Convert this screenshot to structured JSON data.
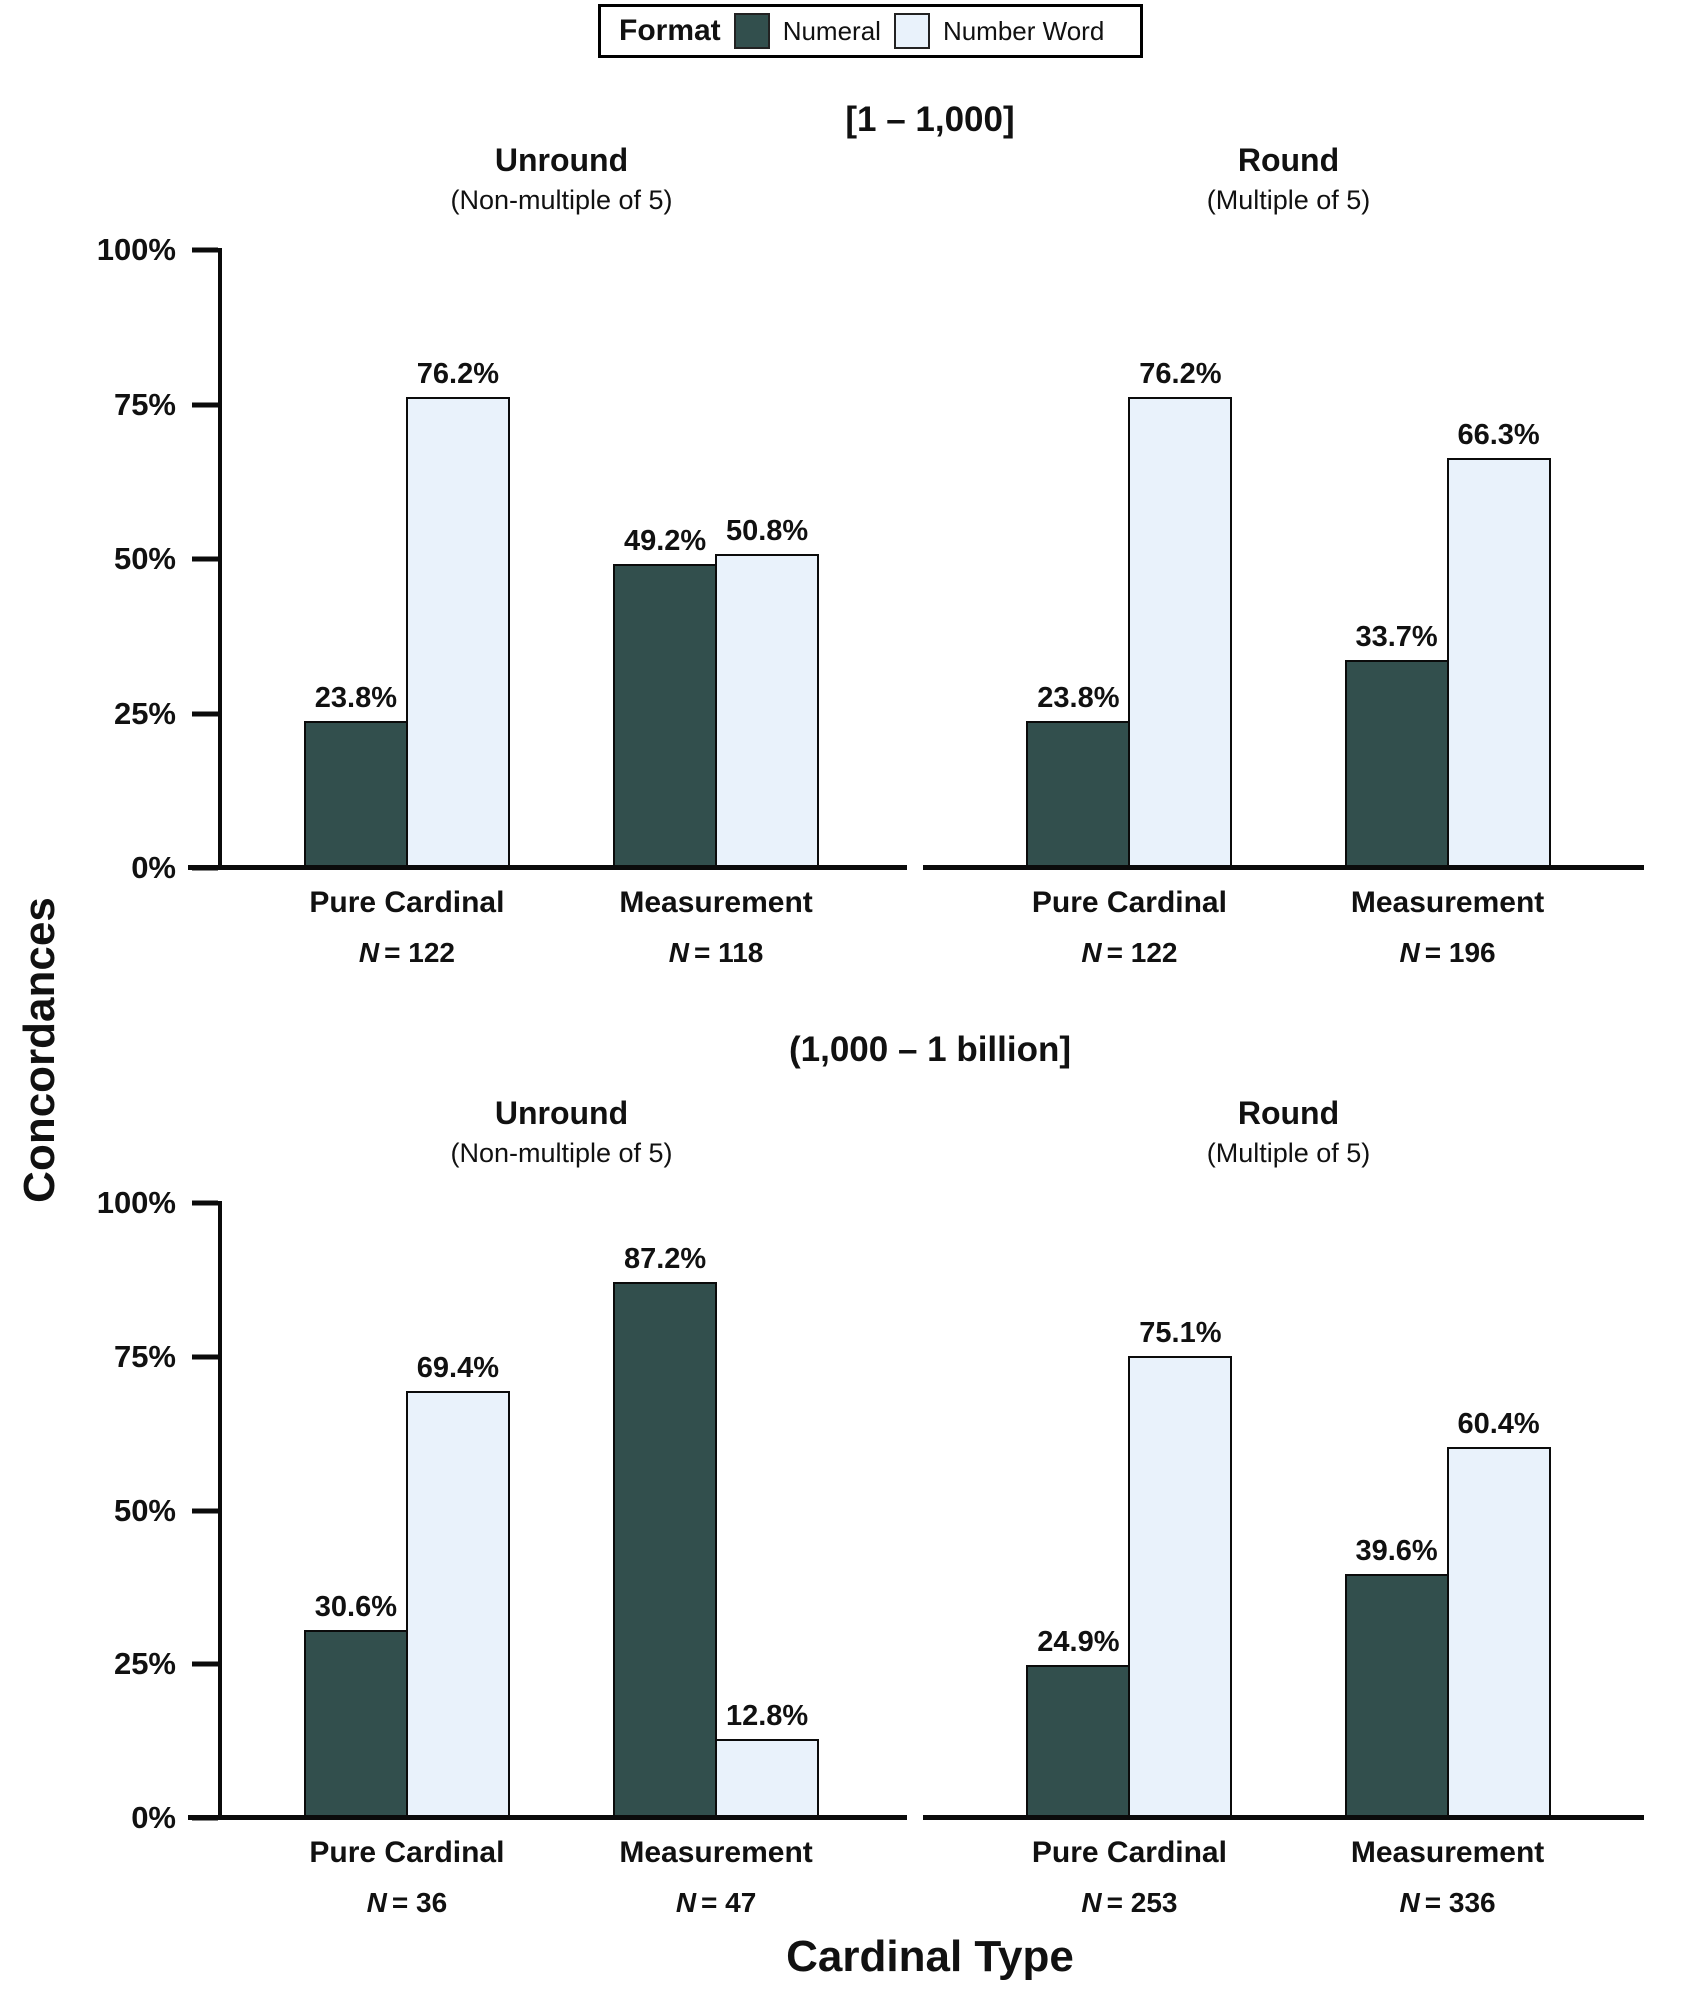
{
  "ylabel": "Concordances",
  "xlabel": "Cardinal Type",
  "legend": {
    "title": "Format",
    "items": [
      {
        "label": "Numeral",
        "color": "#324F4D"
      },
      {
        "label": "Number Word",
        "color": "#E9F2FB"
      }
    ]
  },
  "chart_data": {
    "type": "bar",
    "variant": "grouped-bar-small-multiples",
    "title": "",
    "xlabel": "Cardinal Type",
    "ylabel": "Concordances",
    "ylim": [
      0,
      100
    ],
    "grid": false,
    "yticks": [
      "100%",
      "75%",
      "50%",
      "25%",
      "0%"
    ],
    "legend": {
      "title": "Format",
      "series": [
        "Numeral",
        "Number Word"
      ],
      "position": "top-center"
    },
    "colors": [
      "#324F4D",
      "#E9F2FB"
    ],
    "sections": [
      {
        "title": "[1 – 1,000]",
        "panels": [
          {
            "title": "Unround",
            "subtitle": "(Non-multiple of 5)",
            "groups": [
              {
                "category": "Pure Cardinal",
                "n": "122",
                "values": [
                  23.8,
                  76.2
                ]
              },
              {
                "category": "Measurement",
                "n": "118",
                "values": [
                  49.2,
                  50.8
                ]
              }
            ]
          },
          {
            "title": "Round",
            "subtitle": "(Multiple of 5)",
            "groups": [
              {
                "category": "Pure Cardinal",
                "n": "122",
                "values": [
                  23.8,
                  76.2
                ]
              },
              {
                "category": "Measurement",
                "n": "196",
                "values": [
                  33.7,
                  66.3
                ]
              }
            ]
          }
        ]
      },
      {
        "title": "(1,000 – 1 billion]",
        "panels": [
          {
            "title": "Unround",
            "subtitle": "(Non-multiple of 5)",
            "groups": [
              {
                "category": "Pure Cardinal",
                "n": "36",
                "values": [
                  30.6,
                  69.4
                ]
              },
              {
                "category": "Measurement",
                "n": "47",
                "values": [
                  87.2,
                  12.8
                ]
              }
            ]
          },
          {
            "title": "Round",
            "subtitle": "(Multiple of 5)",
            "groups": [
              {
                "category": "Pure Cardinal",
                "n": "253",
                "values": [
                  24.9,
                  75.1
                ]
              },
              {
                "category": "Measurement",
                "n": "336",
                "values": [
                  39.6,
                  60.4
                ]
              }
            ]
          }
        ]
      }
    ]
  }
}
